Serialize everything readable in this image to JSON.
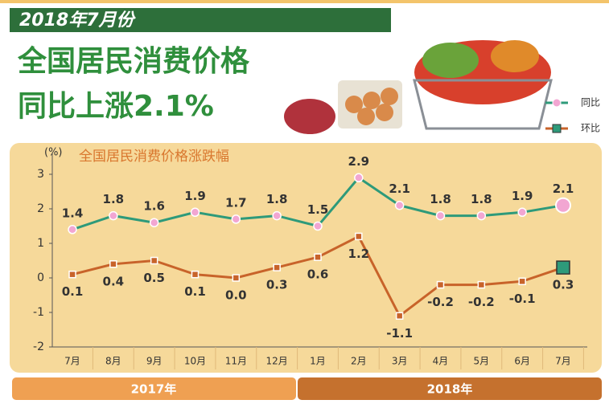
{
  "header": {
    "banner": "2018年7月份",
    "title_line1": "全国居民消费价格",
    "title_line2": "同比上涨2.1%"
  },
  "chart_data": {
    "type": "line",
    "title": "全国居民消费价格涨跌幅",
    "y_unit": "(%)",
    "categories": [
      "7月",
      "8月",
      "9月",
      "10月",
      "11月",
      "12月",
      "1月",
      "2月",
      "3月",
      "4月",
      "5月",
      "6月",
      "7月"
    ],
    "series": [
      {
        "name": "同比",
        "color": "#2e9a7a",
        "marker_color": "#f2a6d2",
        "values": [
          1.4,
          1.8,
          1.6,
          1.9,
          1.7,
          1.8,
          1.5,
          2.9,
          2.1,
          1.8,
          1.8,
          1.9,
          2.1
        ]
      },
      {
        "name": "环比",
        "color": "#c8632a",
        "marker_color": "#2e9a7a",
        "values": [
          0.1,
          0.4,
          0.5,
          0.1,
          0.0,
          0.3,
          0.6,
          1.2,
          -1.1,
          -0.2,
          -0.2,
          -0.1,
          0.3
        ],
        "value_labels": [
          "0.1",
          "0.4",
          "0.5",
          "0.1",
          "0.0",
          "0.3",
          "0.6",
          "1.2",
          "-1.1",
          "-0.2",
          "-0.2",
          "-0.1",
          "0.3"
        ]
      }
    ],
    "ylim": [
      -2,
      3
    ],
    "yticks": [
      3,
      2,
      1,
      0,
      -1,
      -2
    ]
  },
  "timeline": [
    "2017年",
    "2018年"
  ]
}
